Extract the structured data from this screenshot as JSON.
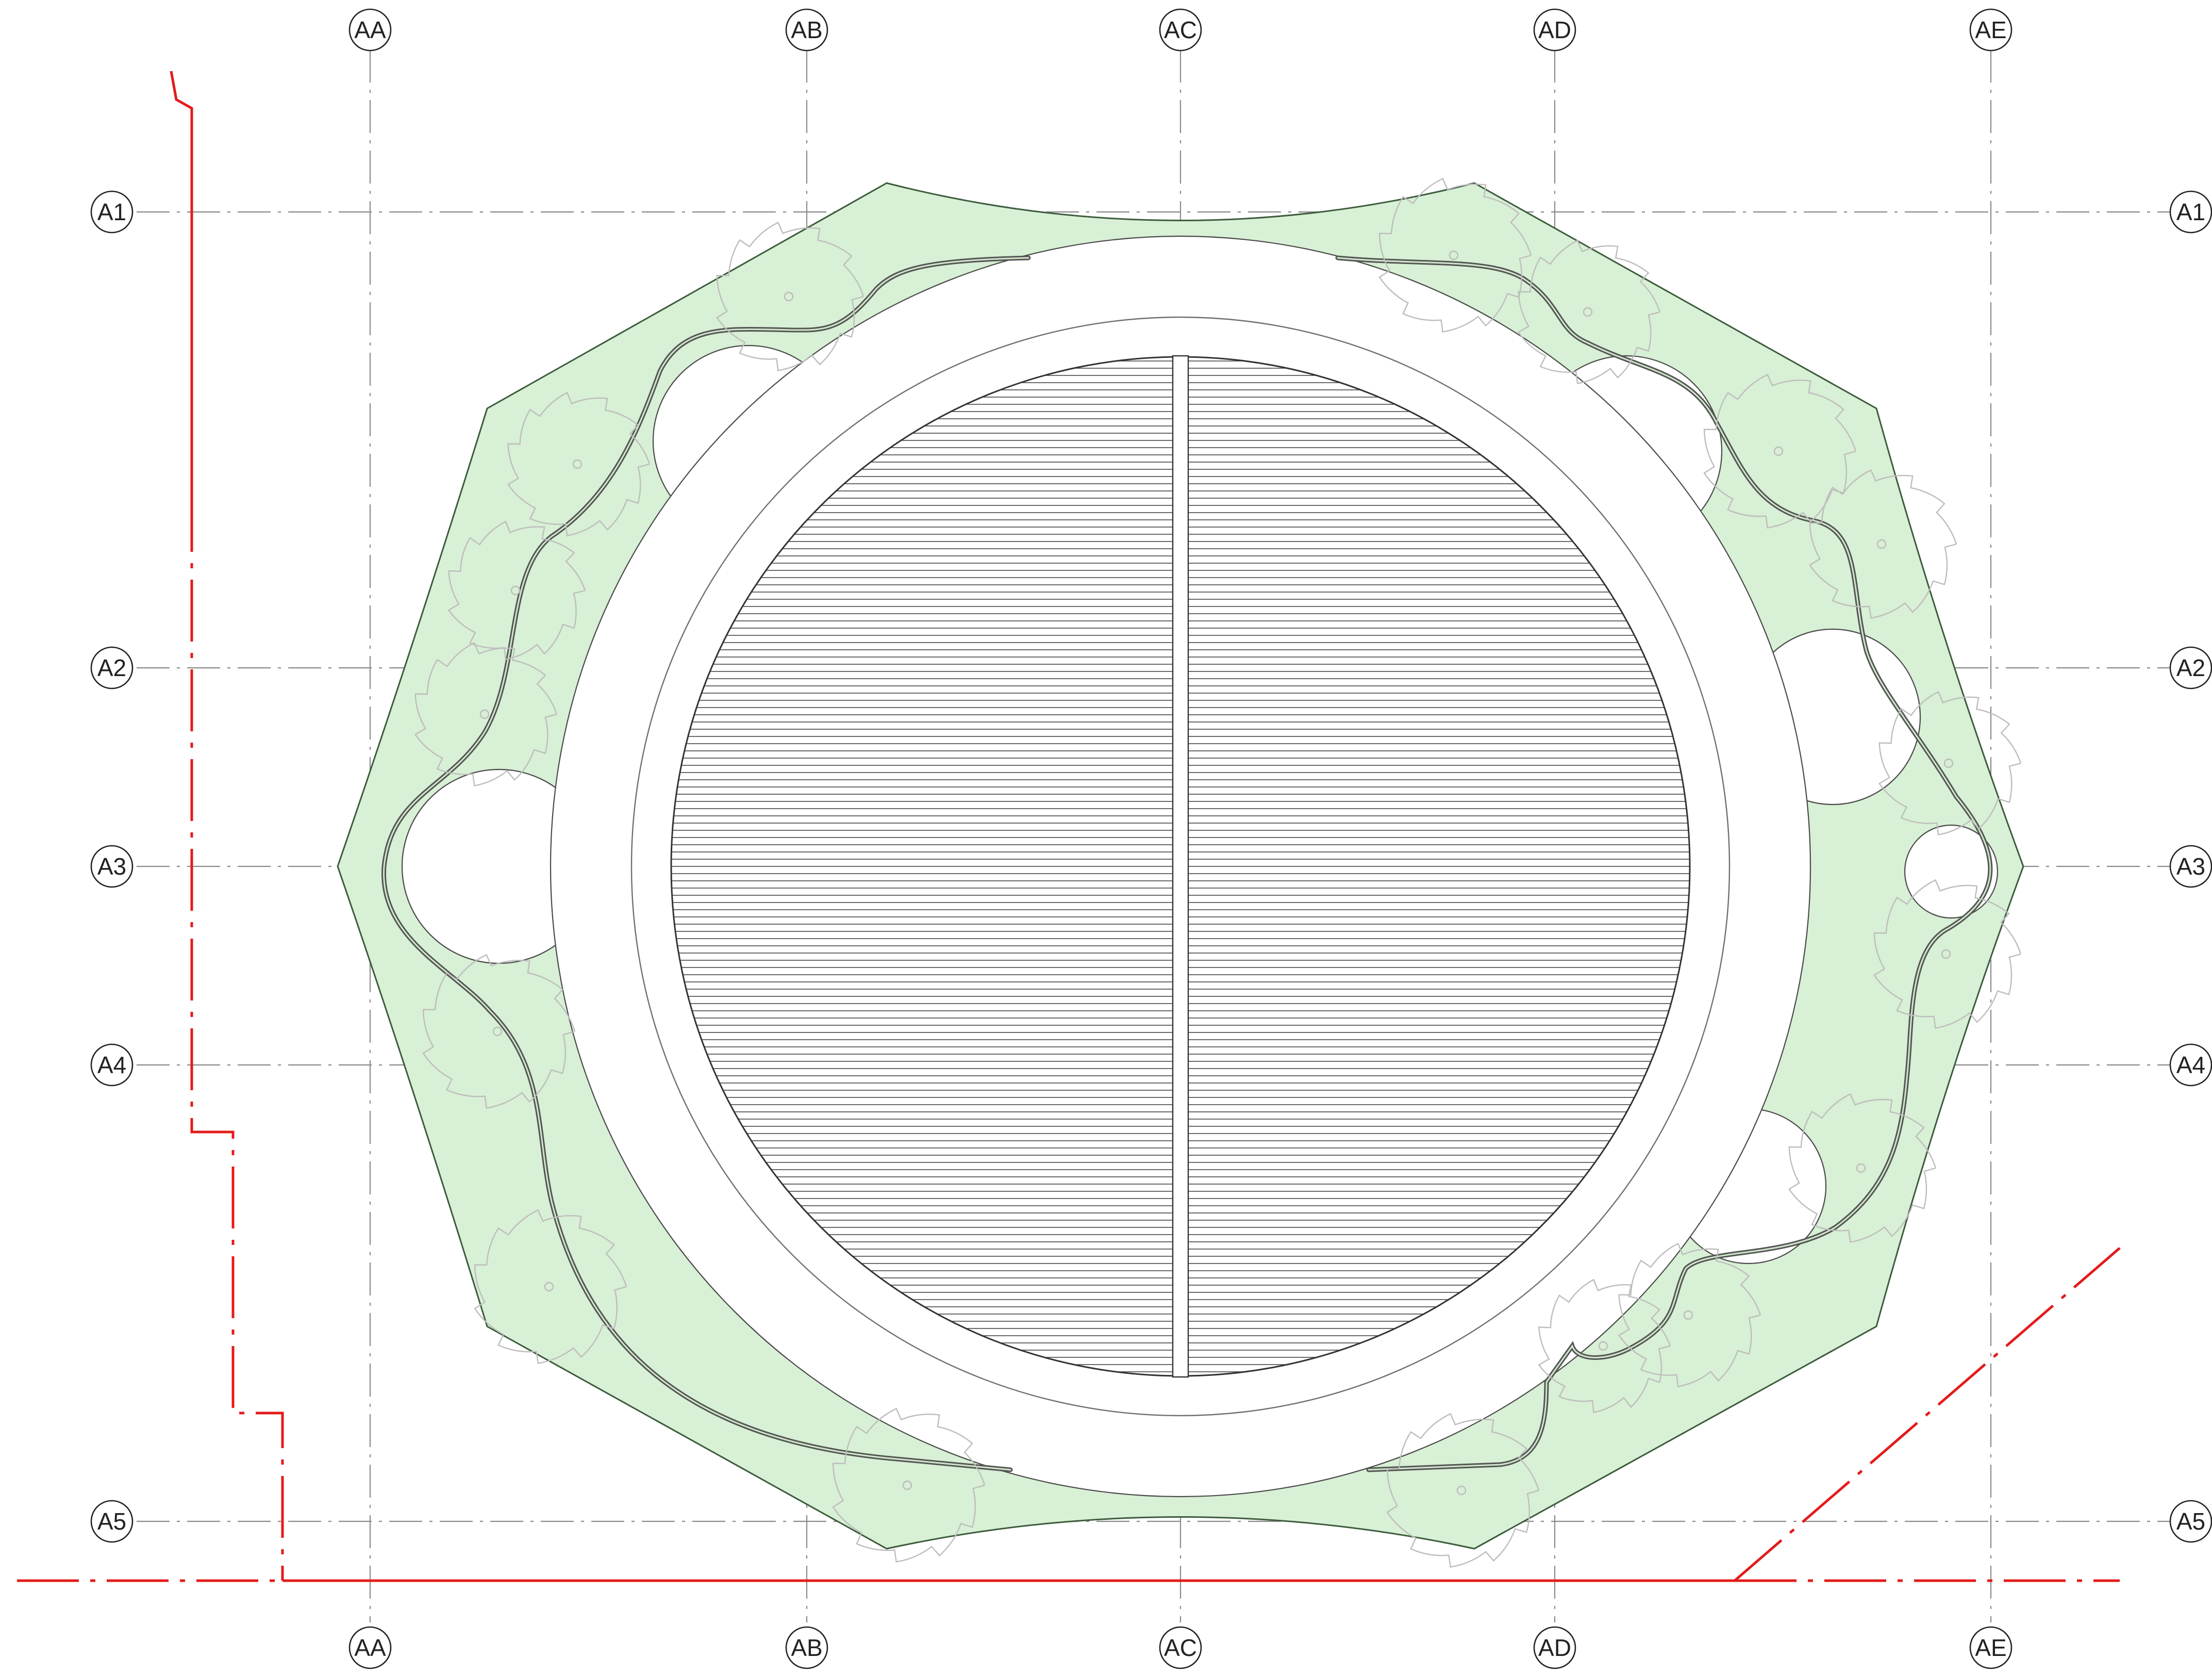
{
  "drawing": {
    "column_grid": [
      "AA",
      "AB",
      "AC",
      "AD",
      "AE"
    ],
    "row_grid": [
      "A1",
      "A2",
      "A3",
      "A4",
      "A5"
    ],
    "colors": {
      "landscape_fill": "#d8f0d5",
      "landscape_outline": "#3d5c3d",
      "boundary_line": "#e31b1b",
      "grid_line": "#8a8a8a",
      "tree_outline": "#bdbdbd",
      "hatch_line": "#3a3a3a"
    },
    "icons": {
      "tree": "tree-canopy-symbol",
      "grid_bubble": "circle-tag"
    }
  }
}
